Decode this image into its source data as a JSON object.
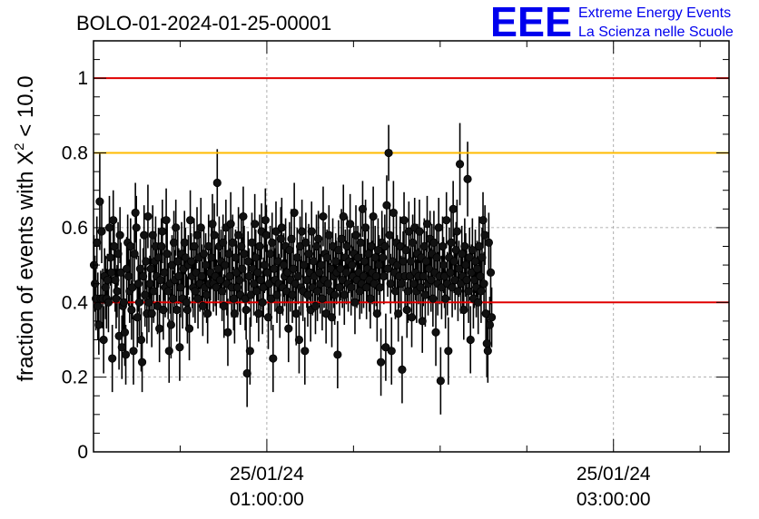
{
  "run_id": "BOLO-01-2024-01-25-00001",
  "logo": {
    "mark": "EEE",
    "line1": "Extreme Energy Events",
    "line2": "La Scienza nelle Scuole",
    "color": "#0000ee"
  },
  "chart_data": {
    "type": "scatter",
    "title": "BOLO-01-2024-01-25-00001",
    "ylabel_prefix": "fraction of events with X",
    "ylabel_sup": "2",
    "ylabel_suffix": " < 10.0",
    "xlim": [
      "2024-01-25T00:00:00",
      "2024-01-25T03:40:00"
    ],
    "ylim": [
      0,
      1.1
    ],
    "yticks": [
      0,
      0.2,
      0.4,
      0.6,
      0.8,
      1
    ],
    "ytick_labels": [
      "0",
      "0.2",
      "0.4",
      "0.6",
      "0.8",
      "1"
    ],
    "xticks": [
      {
        "t": "2024-01-25T01:00:00",
        "label_date": "25/01/24",
        "label_time": "01:00:00"
      },
      {
        "t": "2024-01-25T03:00:00",
        "label_date": "25/01/24",
        "label_time": "03:00:00"
      }
    ],
    "grid": true,
    "reference_lines": [
      {
        "y": 1.0,
        "color": "#e00000"
      },
      {
        "y": 0.8,
        "color": "#ffbb00"
      },
      {
        "y": 0.4,
        "color": "#e00000"
      }
    ],
    "sampling_interval_s": 20,
    "values": [
      0.5,
      0.45,
      0.41,
      0.56,
      0.39,
      0.34,
      0.67,
      0.41,
      0.59,
      0.41,
      0.3,
      0.47,
      0.44,
      0.41,
      0.46,
      0.4,
      0.6,
      0.52,
      0.48,
      0.25,
      0.62,
      0.55,
      0.46,
      0.41,
      0.43,
      0.53,
      0.31,
      0.58,
      0.48,
      0.28,
      0.39,
      0.4,
      0.32,
      0.26,
      0.49,
      0.56,
      0.47,
      0.43,
      0.55,
      0.38,
      0.44,
      0.27,
      0.53,
      0.64,
      0.6,
      0.36,
      0.45,
      0.4,
      0.49,
      0.3,
      0.24,
      0.47,
      0.58,
      0.42,
      0.51,
      0.37,
      0.63,
      0.4,
      0.45,
      0.49,
      0.37,
      0.58,
      0.43,
      0.51,
      0.55,
      0.47,
      0.39,
      0.52,
      0.33,
      0.46,
      0.55,
      0.59,
      0.38,
      0.48,
      0.44,
      0.62,
      0.53,
      0.43,
      0.27,
      0.45,
      0.34,
      0.5,
      0.41,
      0.56,
      0.46,
      0.6,
      0.38,
      0.51,
      0.47,
      0.28,
      0.44,
      0.53,
      0.41,
      0.49,
      0.56,
      0.52,
      0.4,
      0.38,
      0.5,
      0.33,
      0.62,
      0.51,
      0.47,
      0.44,
      0.55,
      0.43,
      0.48,
      0.58,
      0.41,
      0.52,
      0.45,
      0.6,
      0.47,
      0.39,
      0.53,
      0.44,
      0.5,
      0.42,
      0.37,
      0.55,
      0.45,
      0.48,
      0.52,
      0.61,
      0.45,
      0.58,
      0.47,
      0.44,
      0.72,
      0.49,
      0.55,
      0.46,
      0.51,
      0.43,
      0.56,
      0.39,
      0.5,
      0.6,
      0.45,
      0.32,
      0.53,
      0.47,
      0.61,
      0.44,
      0.56,
      0.41,
      0.37,
      0.52,
      0.48,
      0.44,
      0.58,
      0.46,
      0.42,
      0.55,
      0.49,
      0.63,
      0.53,
      0.41,
      0.38,
      0.21,
      0.51,
      0.47,
      0.27,
      0.42,
      0.56,
      0.49,
      0.45,
      0.61,
      0.52,
      0.43,
      0.48,
      0.37,
      0.55,
      0.46,
      0.59,
      0.4,
      0.44,
      0.5,
      0.62,
      0.58,
      0.48,
      0.36,
      0.45,
      0.53,
      0.41,
      0.56,
      0.25,
      0.49,
      0.46,
      0.59,
      0.42,
      0.51,
      0.45,
      0.38,
      0.57,
      0.6,
      0.44,
      0.5,
      0.47,
      0.55,
      0.43,
      0.48,
      0.33,
      0.54,
      0.46,
      0.57,
      0.42,
      0.49,
      0.64,
      0.45,
      0.37,
      0.52,
      0.47,
      0.3,
      0.55,
      0.44,
      0.59,
      0.43,
      0.5,
      0.27,
      0.56,
      0.46,
      0.42,
      0.53,
      0.48,
      0.38,
      0.59,
      0.44,
      0.51,
      0.47,
      0.39,
      0.55,
      0.43,
      0.57,
      0.48,
      0.45,
      0.5,
      0.41,
      0.63,
      0.46,
      0.53,
      0.37,
      0.52,
      0.45,
      0.58,
      0.43,
      0.49,
      0.36,
      0.55,
      0.47,
      0.42,
      0.51,
      0.48,
      0.26,
      0.54,
      0.44,
      0.49,
      0.57,
      0.46,
      0.63,
      0.42,
      0.52,
      0.48,
      0.55,
      0.45,
      0.51,
      0.61,
      0.44,
      0.5,
      0.47,
      0.53,
      0.4,
      0.58,
      0.46,
      0.52,
      0.48,
      0.43,
      0.56,
      0.45,
      0.65,
      0.47,
      0.51,
      0.6,
      0.44,
      0.49,
      0.53,
      0.46,
      0.41,
      0.55,
      0.48,
      0.63,
      0.45,
      0.52,
      0.47,
      0.37,
      0.54,
      0.5,
      0.44,
      0.24,
      0.56,
      0.52,
      0.47,
      0.55,
      0.28,
      0.66,
      0.49,
      0.8,
      0.58,
      0.45,
      0.27,
      0.51,
      0.64,
      0.48,
      0.43,
      0.56,
      0.5,
      0.37,
      0.47,
      0.55,
      0.45,
      0.22,
      0.51,
      0.62,
      0.47,
      0.54,
      0.38,
      0.43,
      0.59,
      0.47,
      0.51,
      0.36,
      0.56,
      0.45,
      0.6,
      0.48,
      0.43,
      0.53,
      0.47,
      0.59,
      0.44,
      0.52,
      0.35,
      0.47,
      0.55,
      0.42,
      0.51,
      0.61,
      0.45,
      0.49,
      0.57,
      0.46,
      0.53,
      0.41,
      0.56,
      0.48,
      0.32,
      0.52,
      0.45,
      0.6,
      0.47,
      0.19,
      0.44,
      0.55,
      0.5,
      0.47,
      0.41,
      0.62,
      0.45,
      0.27,
      0.52,
      0.48,
      0.56,
      0.44,
      0.65,
      0.51,
      0.46,
      0.54,
      0.59,
      0.43,
      0.49,
      0.77,
      0.45,
      0.53,
      0.47,
      0.38,
      0.55,
      0.5,
      0.46,
      0.73,
      0.43,
      0.52,
      0.3,
      0.48,
      0.54,
      0.41,
      0.46,
      0.51,
      0.44,
      0.49,
      0.4,
      0.55,
      0.47,
      0.43,
      0.52,
      0.62,
      0.45,
      0.58,
      0.37,
      0.29,
      0.27,
      0.56,
      0.34,
      0.48,
      0.36
    ],
    "errors": [
      0.08,
      0.075,
      0.085,
      0.07,
      0.09,
      0.08,
      0.13,
      0.075,
      0.085,
      0.08,
      0.09,
      0.075,
      0.085,
      0.08,
      0.07,
      0.08,
      0.085,
      0.075,
      0.08,
      0.09,
      0.08,
      0.075,
      0.085,
      0.08,
      0.07,
      0.085,
      0.09,
      0.075,
      0.08,
      0.085,
      0.08,
      0.075,
      0.09,
      0.08,
      0.085,
      0.075,
      0.08,
      0.085,
      0.075,
      0.08,
      0.085,
      0.09,
      0.075,
      0.08,
      0.085,
      0.08,
      0.075,
      0.09,
      0.08,
      0.085,
      0.08,
      0.075,
      0.08,
      0.085,
      0.075,
      0.08,
      0.085,
      0.08,
      0.075,
      0.08,
      0.09,
      0.08,
      0.085,
      0.075,
      0.08,
      0.085,
      0.075,
      0.08,
      0.09,
      0.08,
      0.075,
      0.085,
      0.08,
      0.075,
      0.08,
      0.085,
      0.08,
      0.075,
      0.085,
      0.08,
      0.09,
      0.08,
      0.075,
      0.085,
      0.08,
      0.075,
      0.085,
      0.08,
      0.075,
      0.09,
      0.08,
      0.085,
      0.08,
      0.075,
      0.085,
      0.08,
      0.075,
      0.09,
      0.08,
      0.085,
      0.08,
      0.075,
      0.085,
      0.08,
      0.075,
      0.085,
      0.08,
      0.075,
      0.08,
      0.085,
      0.075,
      0.08,
      0.085,
      0.08,
      0.075,
      0.08,
      0.085,
      0.075,
      0.08,
      0.085,
      0.08,
      0.075,
      0.085,
      0.08,
      0.075,
      0.085,
      0.08,
      0.075,
      0.09,
      0.085,
      0.08,
      0.075,
      0.085,
      0.08,
      0.075,
      0.085,
      0.08,
      0.075,
      0.085,
      0.09,
      0.08,
      0.075,
      0.085,
      0.08,
      0.075,
      0.085,
      0.08,
      0.075,
      0.085,
      0.08,
      0.075,
      0.085,
      0.08,
      0.075,
      0.085,
      0.08,
      0.075,
      0.085,
      0.08,
      0.09,
      0.08,
      0.075,
      0.09,
      0.085,
      0.08,
      0.075,
      0.085,
      0.08,
      0.075,
      0.085,
      0.08,
      0.075,
      0.085,
      0.08,
      0.075,
      0.085,
      0.08,
      0.075,
      0.085,
      0.08,
      0.075,
      0.085,
      0.08,
      0.075,
      0.085,
      0.08,
      0.09,
      0.075,
      0.085,
      0.08,
      0.075,
      0.085,
      0.08,
      0.075,
      0.085,
      0.08,
      0.075,
      0.085,
      0.08,
      0.075,
      0.085,
      0.08,
      0.09,
      0.075,
      0.085,
      0.08,
      0.075,
      0.085,
      0.08,
      0.075,
      0.085,
      0.08,
      0.075,
      0.09,
      0.08,
      0.075,
      0.085,
      0.08,
      0.075,
      0.09,
      0.08,
      0.075,
      0.085,
      0.08,
      0.075,
      0.085,
      0.08,
      0.075,
      0.085,
      0.08,
      0.075,
      0.085,
      0.08,
      0.075,
      0.085,
      0.08,
      0.075,
      0.085,
      0.08,
      0.075,
      0.085,
      0.08,
      0.075,
      0.085,
      0.08,
      0.075,
      0.085,
      0.08,
      0.075,
      0.085,
      0.08,
      0.075,
      0.085,
      0.09,
      0.08,
      0.075,
      0.085,
      0.08,
      0.075,
      0.085,
      0.08,
      0.075,
      0.085,
      0.08,
      0.075,
      0.085,
      0.08,
      0.075,
      0.085,
      0.08,
      0.075,
      0.085,
      0.08,
      0.075,
      0.085,
      0.08,
      0.075,
      0.085,
      0.08,
      0.075,
      0.085,
      0.08,
      0.075,
      0.085,
      0.08,
      0.075,
      0.085,
      0.08,
      0.075,
      0.085,
      0.08,
      0.075,
      0.085,
      0.08,
      0.075,
      0.085,
      0.08,
      0.075,
      0.09,
      0.085,
      0.08,
      0.075,
      0.085,
      0.09,
      0.08,
      0.075,
      0.075,
      0.085,
      0.08,
      0.09,
      0.075,
      0.085,
      0.08,
      0.075,
      0.085,
      0.08,
      0.075,
      0.085,
      0.08,
      0.075,
      0.09,
      0.08,
      0.075,
      0.085,
      0.08,
      0.075,
      0.085,
      0.08,
      0.075,
      0.085,
      0.08,
      0.075,
      0.085,
      0.08,
      0.075,
      0.085,
      0.08,
      0.075,
      0.085,
      0.08,
      0.075,
      0.085,
      0.08,
      0.075,
      0.085,
      0.08,
      0.075,
      0.085,
      0.08,
      0.075,
      0.085,
      0.08,
      0.075,
      0.085,
      0.08,
      0.09,
      0.075,
      0.085,
      0.08,
      0.075,
      0.09,
      0.085,
      0.08,
      0.075,
      0.085,
      0.08,
      0.075,
      0.085,
      0.09,
      0.08,
      0.075,
      0.085,
      0.08,
      0.075,
      0.085,
      0.08,
      0.075,
      0.085,
      0.08,
      0.075,
      0.11,
      0.08,
      0.075,
      0.085,
      0.08,
      0.075,
      0.085,
      0.08,
      0.1,
      0.085,
      0.08,
      0.09,
      0.075,
      0.085,
      0.08,
      0.075,
      0.085,
      0.08,
      0.075,
      0.085,
      0.08,
      0.075,
      0.085,
      0.08,
      0.075,
      0.085,
      0.08,
      0.075,
      0.09,
      0.085,
      0.08,
      0.075,
      0.085,
      0.08
    ]
  }
}
